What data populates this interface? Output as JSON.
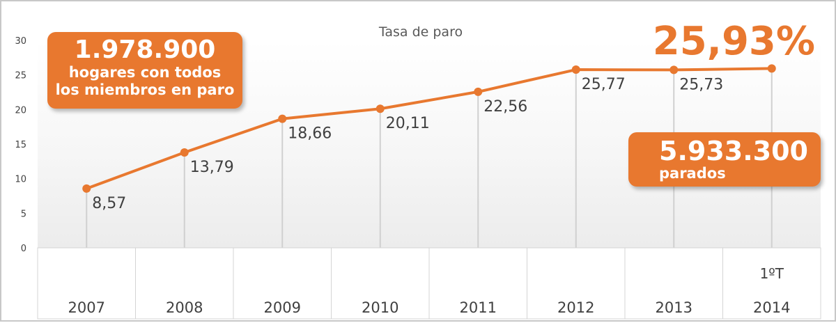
{
  "chart_data": {
    "type": "line",
    "title": "Tasa de paro",
    "categories": [
      "2007",
      "2008",
      "2009",
      "2010",
      "2011",
      "2012",
      "2013",
      "2014"
    ],
    "category_prefix": {
      "2014": "1ºT"
    },
    "values": [
      8.57,
      13.79,
      18.66,
      20.11,
      22.56,
      25.77,
      25.73,
      25.93
    ],
    "data_labels": [
      "8,57",
      "13,79",
      "18,66",
      "20,11",
      "22,56",
      "25,77",
      "25,73",
      ""
    ],
    "ylim": [
      0,
      30
    ],
    "y_ticks": [
      "0",
      "5",
      "10",
      "15",
      "20",
      "25",
      "30"
    ],
    "series_color": "#e8782f",
    "grid": "vertical drop lines",
    "legend": "none"
  },
  "callouts": {
    "hogares": {
      "value": "1.978.900",
      "line1": "hogares con todos",
      "line2": "los miembros en paro"
    },
    "parados": {
      "value": "5.933.300",
      "label": "parados"
    },
    "latest_rate": "25,93%"
  }
}
